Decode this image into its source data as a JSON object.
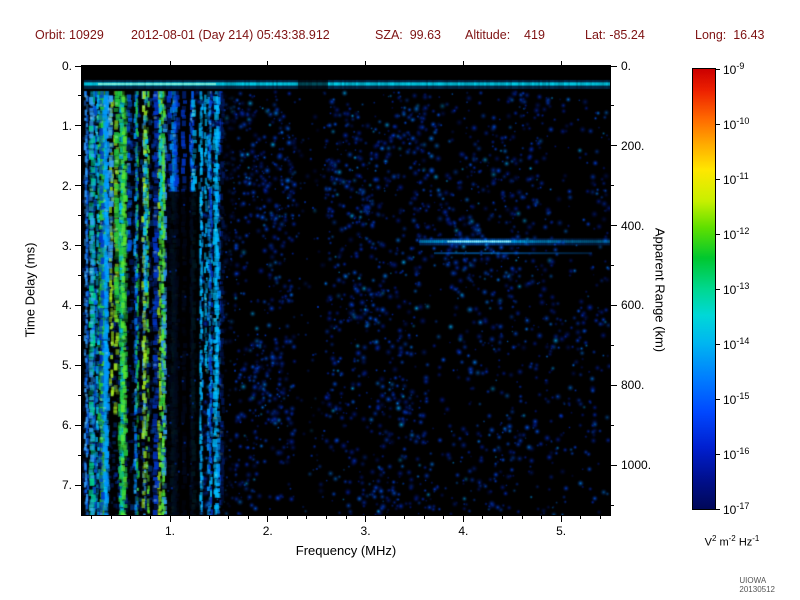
{
  "header": {
    "orbit": "Orbit: 10929",
    "datetime": "2012-08-01 (Day 214) 05:43:38.912",
    "sza": "SZA:  99.63",
    "altitude": "Altitude:    419",
    "lat": "Lat: -85.24",
    "long": "Long:  16.43"
  },
  "credit": "UIOWA 20130512",
  "colors": {
    "header_text": "#7e1212",
    "plot_background": "#000000",
    "axis_text": "#000000"
  },
  "chart_data": {
    "type": "heatmap",
    "xlabel": "Frequency (MHz)",
    "ylabel_left": "Time Delay (ms)",
    "ylabel_right": "Apparent Range (km)",
    "x_range_mhz": [
      0.1,
      5.5
    ],
    "y_range_ms": [
      0.0,
      7.5
    ],
    "km_per_ms": 150,
    "x_ticks": [
      "1.",
      "2.",
      "3.",
      "4.",
      "5."
    ],
    "x_tick_values": [
      1,
      2,
      3,
      4,
      5
    ],
    "y_ticks_left": [
      "0.",
      "1.",
      "2.",
      "3.",
      "4.",
      "5.",
      "6.",
      "7."
    ],
    "y_tick_values_left": [
      0,
      1,
      2,
      3,
      4,
      5,
      6,
      7
    ],
    "y_ticks_right": [
      "0.",
      "200.",
      "400.",
      "600.",
      "800.",
      "1000."
    ],
    "y_tick_values_right_km": [
      0,
      200,
      400,
      600,
      800,
      1000
    ],
    "colorbar": {
      "scale": "log10",
      "mantissa": "10",
      "exponent_labels": [
        "-9",
        "-10",
        "-11",
        "-12",
        "-13",
        "-14",
        "-15",
        "-16",
        "-17"
      ],
      "unit_segments": [
        [
          "V",
          "2"
        ],
        [
          " m",
          "-2"
        ],
        [
          " Hz",
          "-1"
        ]
      ],
      "stops": [
        [
          0,
          "#cc0000"
        ],
        [
          0.05,
          "#ee2200"
        ],
        [
          0.11,
          "#ff6600"
        ],
        [
          0.17,
          "#ffaa00"
        ],
        [
          0.23,
          "#ffe800"
        ],
        [
          0.3,
          "#c8f000"
        ],
        [
          0.36,
          "#60e000"
        ],
        [
          0.43,
          "#00c830"
        ],
        [
          0.5,
          "#00d890"
        ],
        [
          0.56,
          "#00d8d8"
        ],
        [
          0.62,
          "#00b8f0"
        ],
        [
          0.7,
          "#0080ff"
        ],
        [
          0.78,
          "#0048ff"
        ],
        [
          0.86,
          "#0020d0"
        ],
        [
          0.93,
          "#001090"
        ],
        [
          1,
          "#000858"
        ]
      ]
    },
    "features": {
      "seed": 20130512,
      "transmit_line": {
        "time_ms": 0.3,
        "freq_range": [
          0.12,
          5.5
        ],
        "core_color": "#00e8ff",
        "halo_color": "#0090ff",
        "bright_range": [
          0.25,
          1.45
        ],
        "bright_color": "#b0ffd8",
        "dim_range": [
          2.3,
          2.6
        ]
      },
      "stripe_region": {
        "freq_range": [
          0.1,
          1.52
        ],
        "time_start_ms": 0.42,
        "stripe_count": 58,
        "bright_freq_max": 0.98,
        "bright_palette": [
          "#20c840",
          "#60e830",
          "#a8f020",
          "#00d890",
          "#00c8e8",
          "#30a0ff"
        ],
        "blue_palette": [
          "#0038d0",
          "#0060f0",
          "#0098ff",
          "#00c0ff"
        ]
      },
      "speckle": {
        "freq_range": [
          1.22,
          5.5
        ],
        "time_range": [
          0.42,
          7.5
        ],
        "count": 3000,
        "palette": [
          [
            "#001f90",
            0.3
          ],
          [
            "#0030c0",
            0.25
          ],
          [
            "#0048e8",
            0.2
          ],
          [
            "#0060ff",
            0.12
          ],
          [
            "#0088ff",
            0.08
          ],
          [
            "#00b8ff",
            0.05
          ]
        ],
        "density_bands": [
          [
            1.22,
            1.62,
            1.0
          ],
          [
            1.62,
            2.28,
            0.8
          ],
          [
            2.28,
            2.6,
            0.15
          ],
          [
            2.6,
            3.65,
            0.75
          ],
          [
            3.65,
            4.9,
            0.62
          ],
          [
            4.9,
            5.5,
            0.5
          ]
        ]
      },
      "dark_bands": [
        {
          "freq_range": [
            0.97,
            1.3
          ],
          "time_range": [
            2.1,
            7.5
          ],
          "alpha": 0.88
        },
        {
          "freq_range": [
            1.52,
            1.66
          ],
          "time_range": [
            0.45,
            7.5
          ],
          "alpha": 0.55
        },
        {
          "freq_range": [
            2.3,
            2.58
          ],
          "time_range": [
            0.45,
            7.5
          ],
          "alpha": 0.5
        }
      ],
      "echo_line": {
        "time_ms": 2.93,
        "freq_range": [
          3.55,
          5.5
        ],
        "peak_freq_mhz": 4.15,
        "core_color": "#c8ffff",
        "mid_color": "#00c8ff",
        "edge_color": "#0070ff",
        "secondary_offset_ms": 0.18
      },
      "echo_cluster": {
        "freq_mhz": 4.15,
        "time_ms": 2.95,
        "count": 50
      }
    }
  }
}
